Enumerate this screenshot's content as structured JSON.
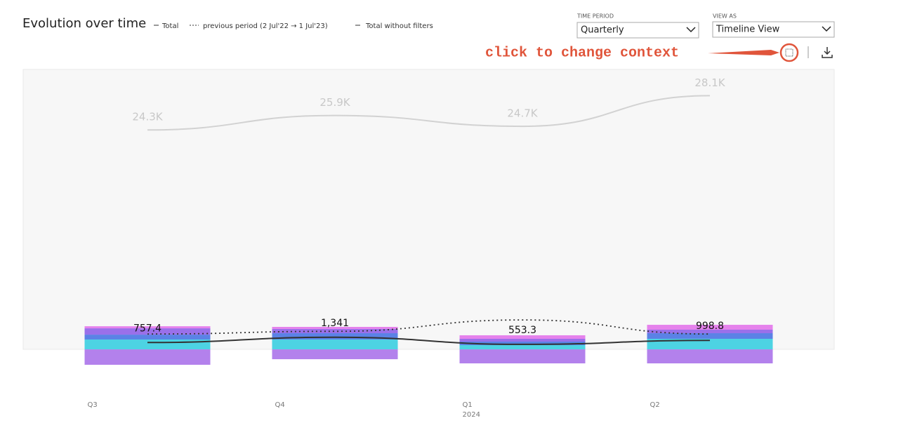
{
  "header": {
    "title": "Evolution over time"
  },
  "controls": [
    {
      "label": "TIME PERIOD",
      "value": "Quarterly"
    },
    {
      "label": "VIEW AS",
      "value": "Timeline View"
    }
  ],
  "annotation": "click to change context",
  "chart_data": {
    "type": "combo",
    "categories": [
      "Q3",
      "Q4",
      "Q1",
      "Q2"
    ],
    "category_sublabels": [
      null,
      null,
      "2024",
      null
    ],
    "ylim": [
      -2000,
      31000
    ],
    "series": [
      {
        "type": "bar",
        "color": "#4dd3e3",
        "values": [
          1090,
          1090,
          470,
          1170
        ]
      },
      {
        "type": "bar",
        "color": "#5b82e6",
        "values": [
          540,
          700,
          390,
          620
        ]
      },
      {
        "type": "bar",
        "color": "#9a70ea",
        "values": [
          700,
          470,
          310,
          390
        ]
      },
      {
        "type": "bar",
        "color": "#e582ec",
        "values": [
          230,
          230,
          390,
          540
        ]
      },
      {
        "type": "bar",
        "color": "#b381ec",
        "values": [
          -1710,
          -1090,
          -1550,
          -1550
        ]
      },
      {
        "type": "line",
        "name": "Total",
        "color": "#333333",
        "style": "solid",
        "values": [
          757.4,
          1341,
          553.3,
          998.8
        ],
        "value_labels": [
          "757.4",
          "1,341",
          "553.3",
          "998.8"
        ]
      },
      {
        "type": "line",
        "name": "previous period (2 Jul'22 → 1 Jul'23)",
        "color": "#333333",
        "style": "dotted",
        "values": [
          1700,
          2000,
          3260,
          1700
        ]
      },
      {
        "type": "line",
        "name": "Total without filters",
        "color": "#d2d2d2",
        "style": "solid",
        "values": [
          24300,
          25900,
          24700,
          28100
        ],
        "value_labels": [
          "24.3K",
          "25.9K",
          "24.7K",
          "28.1K"
        ]
      }
    ]
  }
}
